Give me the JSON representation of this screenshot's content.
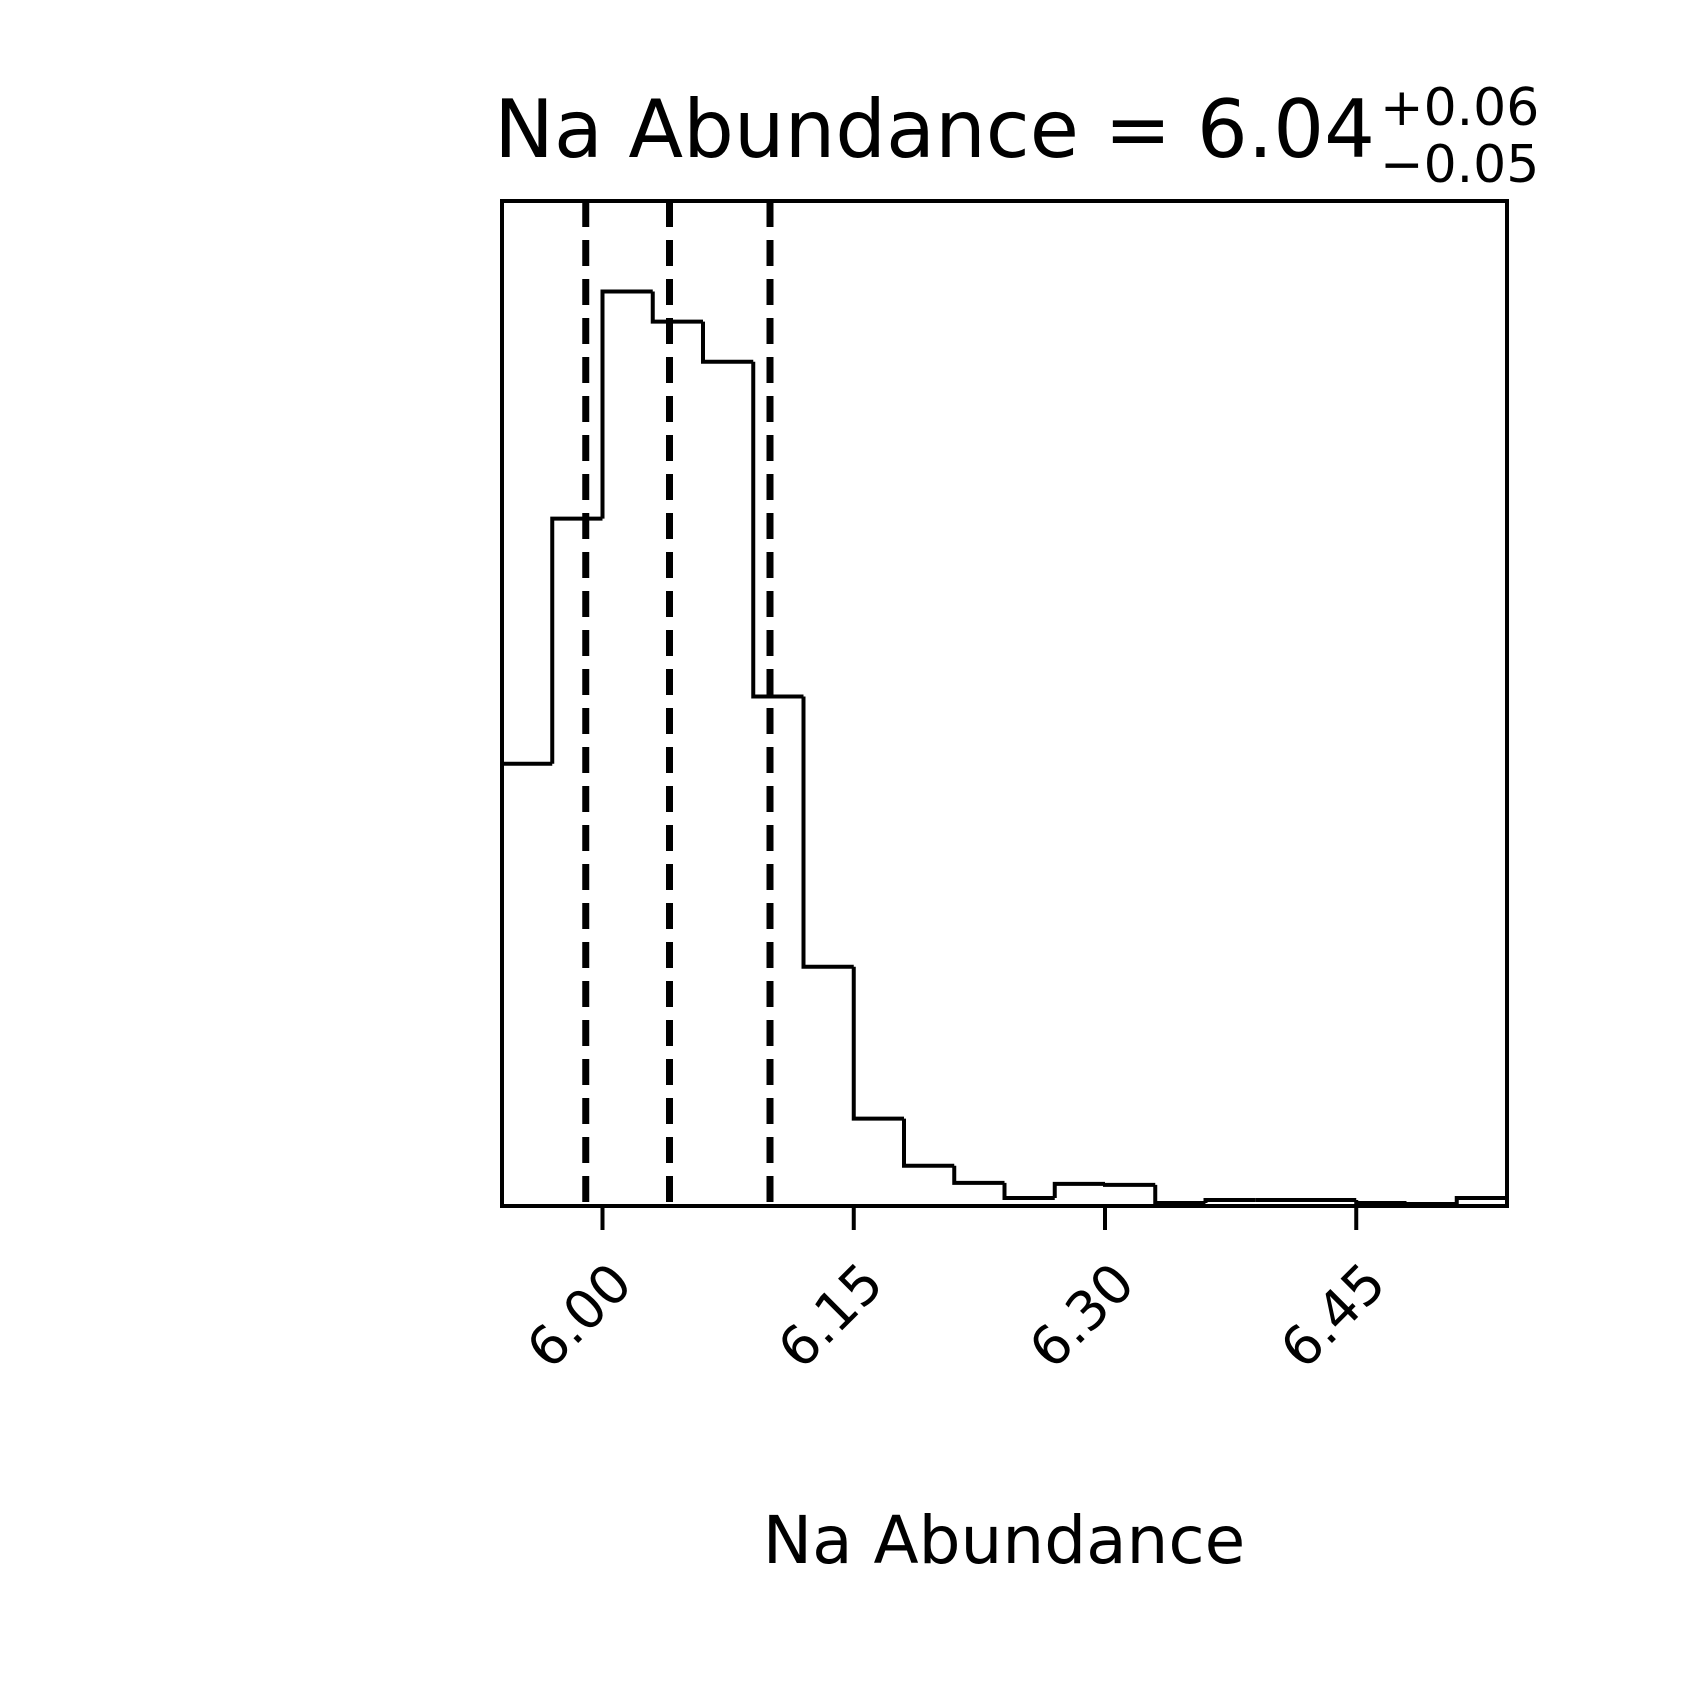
{
  "chart_data": {
    "type": "histogram",
    "title": {
      "main": "Na Abundance = 6.04",
      "upper": "+0.06",
      "lower": "−0.05"
    },
    "xlabel": "Na Abundance",
    "ylabel": "",
    "xlim": [
      5.94,
      6.54
    ],
    "ylim": [
      0,
      1.0
    ],
    "xticks": [
      {
        "value": 6.0,
        "label": "6.00"
      },
      {
        "value": 6.15,
        "label": "6.15"
      },
      {
        "value": 6.3,
        "label": "6.30"
      },
      {
        "value": 6.45,
        "label": "6.45"
      }
    ],
    "bin_width": 0.03,
    "bins": [
      {
        "x0": 5.94,
        "x1": 5.97,
        "value": 0.44
      },
      {
        "x0": 5.97,
        "x1": 6.0,
        "value": 0.684
      },
      {
        "x0": 6.0,
        "x1": 6.03,
        "value": 0.91
      },
      {
        "x0": 6.03,
        "x1": 6.06,
        "value": 0.88
      },
      {
        "x0": 6.06,
        "x1": 6.09,
        "value": 0.84
      },
      {
        "x0": 6.09,
        "x1": 6.12,
        "value": 0.507
      },
      {
        "x0": 6.12,
        "x1": 6.15,
        "value": 0.238
      },
      {
        "x0": 6.15,
        "x1": 6.18,
        "value": 0.087
      },
      {
        "x0": 6.18,
        "x1": 6.21,
        "value": 0.04
      },
      {
        "x0": 6.21,
        "x1": 6.24,
        "value": 0.023
      },
      {
        "x0": 6.24,
        "x1": 6.27,
        "value": 0.008
      },
      {
        "x0": 6.27,
        "x1": 6.3,
        "value": 0.022
      },
      {
        "x0": 6.3,
        "x1": 6.33,
        "value": 0.021
      },
      {
        "x0": 6.33,
        "x1": 6.36,
        "value": 0.003
      },
      {
        "x0": 6.36,
        "x1": 6.39,
        "value": 0.006
      },
      {
        "x0": 6.39,
        "x1": 6.42,
        "value": 0.006
      },
      {
        "x0": 6.42,
        "x1": 6.45,
        "value": 0.006
      },
      {
        "x0": 6.45,
        "x1": 6.48,
        "value": 0.003
      },
      {
        "x0": 6.48,
        "x1": 6.51,
        "value": 0.002
      },
      {
        "x0": 6.51,
        "x1": 6.54,
        "value": 0.008
      }
    ],
    "quantile_lines": [
      5.99,
      6.04,
      6.1
    ],
    "grid": false,
    "legend": "none",
    "colors": {
      "line": "#000000",
      "background": "#ffffff"
    }
  }
}
